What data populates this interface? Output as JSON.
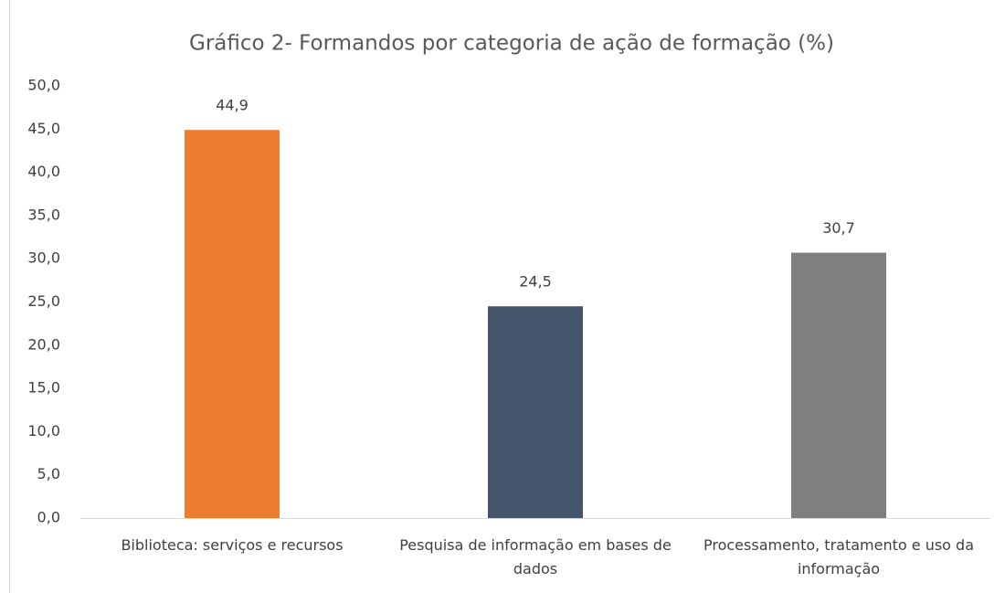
{
  "chart_data": {
    "type": "bar",
    "title": "Gráfico 2- Formandos por categoria de ação de formação (%)",
    "categories": [
      "Biblioteca: serviços e recursos",
      "Pesquisa de informação em bases de dados",
      "Processamento, tratamento e uso da informação"
    ],
    "values": [
      44.9,
      24.5,
      30.7
    ],
    "value_labels": [
      "44,9",
      "24,5",
      "30,7"
    ],
    "colors": [
      "#ed7d31",
      "#44546a",
      "#7f7f7f"
    ],
    "ylim": [
      0,
      50
    ],
    "yticks": [
      {
        "value": 0,
        "label": "0,0"
      },
      {
        "value": 5,
        "label": "5,0"
      },
      {
        "value": 10,
        "label": "10,0"
      },
      {
        "value": 15,
        "label": "15,0"
      },
      {
        "value": 20,
        "label": "20,0"
      },
      {
        "value": 25,
        "label": "25,0"
      },
      {
        "value": 30,
        "label": "30,0"
      },
      {
        "value": 35,
        "label": "35,0"
      },
      {
        "value": 40,
        "label": "40,0"
      },
      {
        "value": 45,
        "label": "45,0"
      },
      {
        "value": 50,
        "label": "50,0"
      }
    ],
    "grid": false
  }
}
